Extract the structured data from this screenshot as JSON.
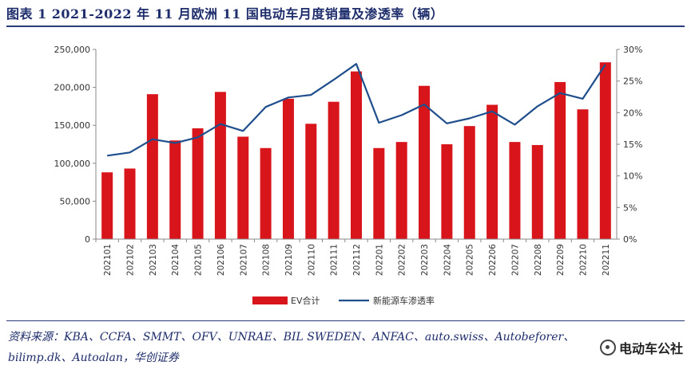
{
  "figure": {
    "title": "图表 1   2021-2022 年 11 月欧洲 11 国电动车月度销量及渗透率（辆）",
    "source_line1": "资料来源：KBA、CCFA、SMMT、OFV、UNRAE、BIL SWEDEN、ANFAC、auto.swiss、Autobeforer、",
    "source_line2": "bilimp.dk、Autoalan，华创证券",
    "watermark": "电动车公社"
  },
  "chart_data": {
    "type": "bar+line",
    "title": "2021-2022 年 11 月欧洲 11 国电动车月度销量及渗透率（辆）",
    "categories": [
      "202101",
      "202102",
      "202103",
      "202104",
      "202105",
      "202106",
      "202107",
      "202108",
      "202109",
      "202110",
      "202111",
      "202112",
      "202201",
      "202202",
      "202203",
      "202204",
      "202205",
      "202206",
      "202207",
      "202208",
      "202209",
      "202210",
      "202211"
    ],
    "series": [
      {
        "name": "EV合计",
        "type": "bar",
        "axis": "left",
        "color": "#d9151c",
        "values": [
          88000,
          93000,
          191000,
          130000,
          146000,
          194000,
          135000,
          120000,
          185000,
          152000,
          181000,
          221000,
          120000,
          128000,
          202000,
          125000,
          149000,
          177000,
          128000,
          124000,
          207000,
          171000,
          233000
        ]
      },
      {
        "name": "新能源车渗透率",
        "type": "line",
        "axis": "right",
        "color": "#1f4e8c",
        "values": [
          13.2,
          13.7,
          15.8,
          15.2,
          16.1,
          18.2,
          17.1,
          20.9,
          22.4,
          22.8,
          25.2,
          27.7,
          18.4,
          19.6,
          21.3,
          18.3,
          19.1,
          20.2,
          18.1,
          21.0,
          23.1,
          22.2,
          27.6
        ]
      }
    ],
    "y_left": {
      "min": 0,
      "max": 250000,
      "ticks": [
        "0",
        "50,000",
        "100,000",
        "150,000",
        "200,000",
        "250,000"
      ]
    },
    "y_right": {
      "min": 0,
      "max": 30,
      "ticks": [
        "0%",
        "5%",
        "10%",
        "15%",
        "20%",
        "25%",
        "30%"
      ]
    },
    "legend": {
      "position": "bottom-center",
      "bar_label": "EV合计",
      "line_label": "新能源车渗透率"
    },
    "grid": false
  }
}
